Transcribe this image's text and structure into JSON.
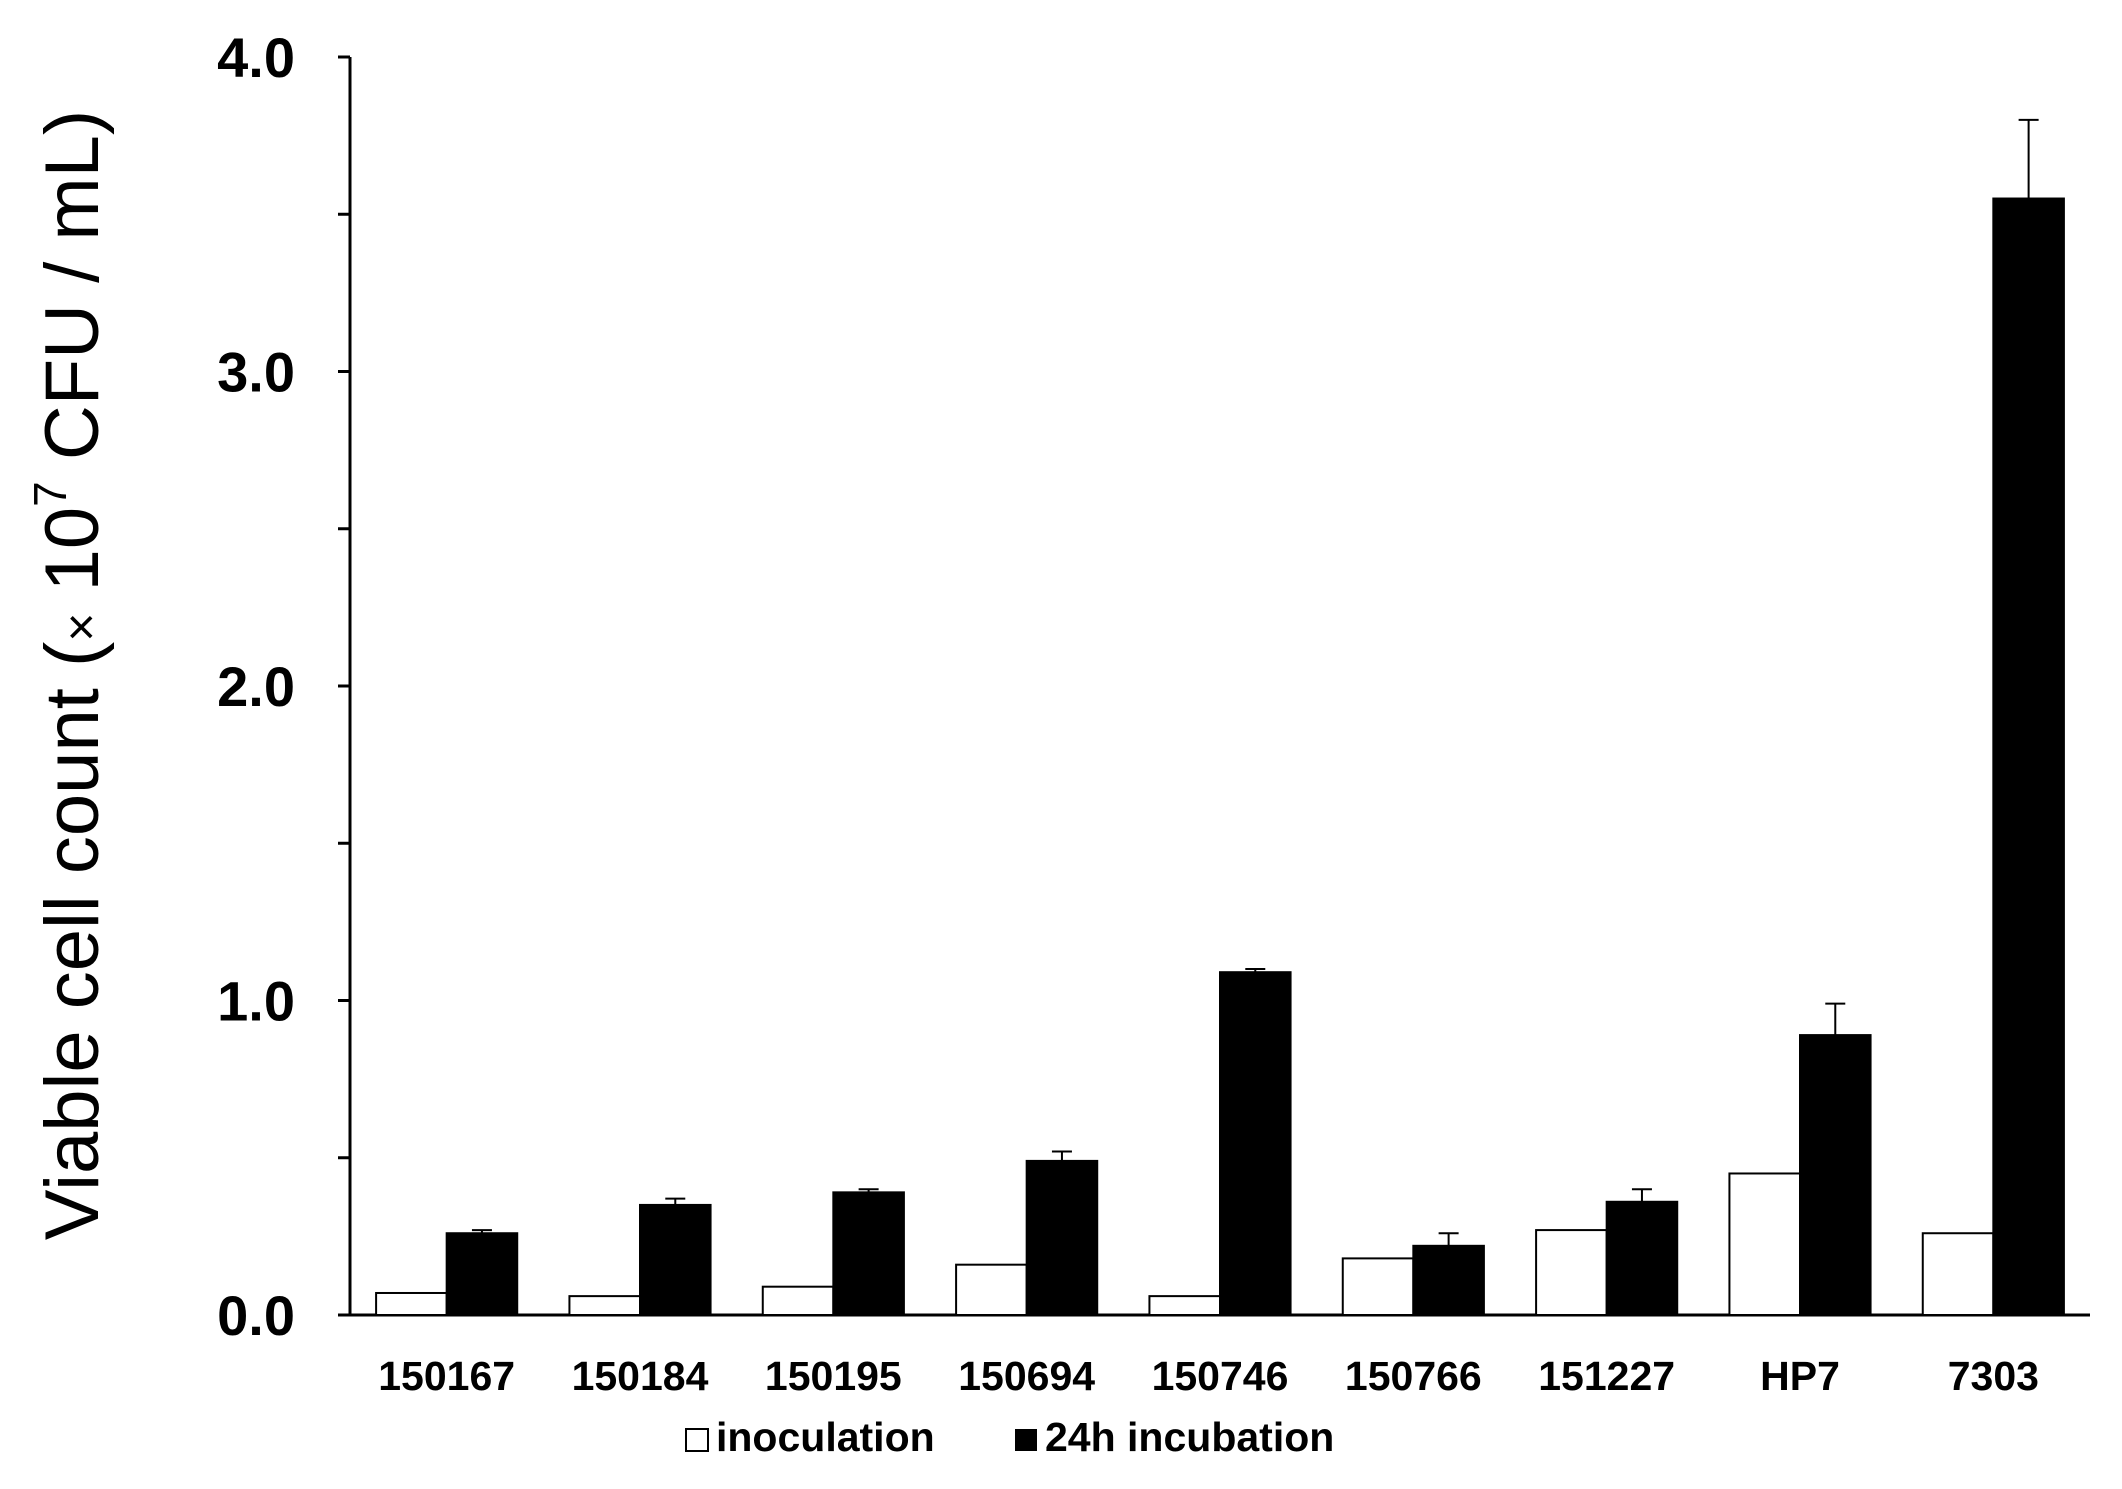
{
  "chart_data": {
    "type": "bar",
    "categories": [
      "150167",
      "150184",
      "150195",
      "150694",
      "150746",
      "150766",
      "151227",
      "HP7",
      "7303"
    ],
    "series": [
      {
        "name": "inoculation",
        "values": [
          0.07,
          0.06,
          0.09,
          0.16,
          0.06,
          0.18,
          0.27,
          0.45,
          0.26
        ],
        "errors": [
          0,
          0,
          0,
          0,
          0,
          0,
          0,
          0,
          0
        ],
        "fill": "#ffffff",
        "stroke": "#000000"
      },
      {
        "name": "24h incubation",
        "values": [
          0.26,
          0.35,
          0.39,
          0.49,
          1.09,
          0.22,
          0.36,
          0.89,
          3.55
        ],
        "errors": [
          0.01,
          0.02,
          0.01,
          0.03,
          0.01,
          0.04,
          0.04,
          0.1,
          0.25
        ],
        "fill": "#000000",
        "stroke": "#000000"
      }
    ],
    "ylabel": {
      "main": "Viable cell count (",
      "times": "×",
      "base": " 10",
      "exponent": "7",
      "unit": " CFU / mL)"
    },
    "ylim": [
      0,
      4
    ],
    "yticks_major": [
      "0.0",
      "1.0",
      "2.0",
      "3.0",
      "4.0"
    ],
    "ytick_minor_step": 0.5,
    "grid": false,
    "legend_position": "bottom"
  }
}
